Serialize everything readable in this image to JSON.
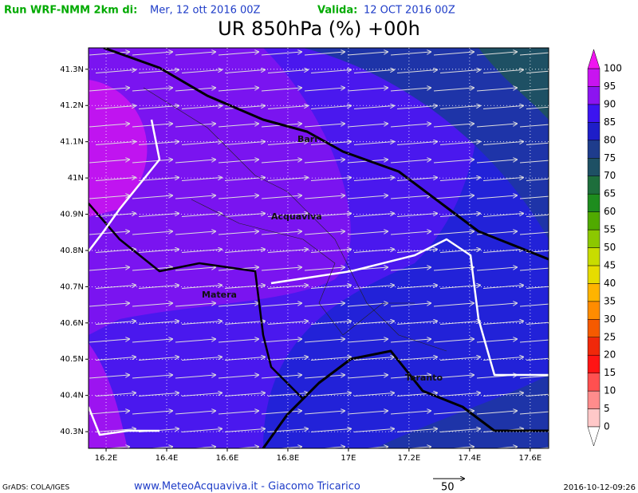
{
  "header": {
    "run_label": "Run WRF-NMM 2km di:",
    "run_date": "Mer, 12 ott 2016 00Z",
    "valid_label": "Valida:",
    "valid_date": "12 OCT 2016 00Z"
  },
  "title": "UR 850hPa (%) +00h",
  "map": {
    "xlim": [
      16.142,
      17.661
    ],
    "ylim": [
      40.254,
      41.359
    ],
    "xticks": [
      {
        "value": 16.2,
        "label": "16.2E"
      },
      {
        "value": 16.4,
        "label": "16.4E"
      },
      {
        "value": 16.6,
        "label": "16.6E"
      },
      {
        "value": 16.8,
        "label": "16.8E"
      },
      {
        "value": 17.0,
        "label": "17E"
      },
      {
        "value": 17.2,
        "label": "17.2E"
      },
      {
        "value": 17.4,
        "label": "17.4E"
      },
      {
        "value": 17.6,
        "label": "17.6E"
      }
    ],
    "yticks": [
      {
        "value": 41.3,
        "label": "41.3N"
      },
      {
        "value": 41.2,
        "label": "41.2N"
      },
      {
        "value": 41.1,
        "label": "41.1N"
      },
      {
        "value": 41.0,
        "label": "41N"
      },
      {
        "value": 40.9,
        "label": "40.9N"
      },
      {
        "value": 40.8,
        "label": "40.8N"
      },
      {
        "value": 40.7,
        "label": "40.7N"
      },
      {
        "value": 40.6,
        "label": "40.6N"
      },
      {
        "value": 40.5,
        "label": "40.5N"
      },
      {
        "value": 40.4,
        "label": "40.4N"
      },
      {
        "value": 40.3,
        "label": "40.3N"
      }
    ],
    "cities": [
      "Bari",
      "Acquaviva",
      "Matera",
      "Taranto"
    ]
  },
  "colorbar": {
    "levels": [
      0,
      5,
      10,
      15,
      20,
      25,
      30,
      35,
      40,
      45,
      50,
      55,
      60,
      65,
      70,
      75,
      80,
      85,
      90,
      95,
      100
    ],
    "colors": [
      "#ffc8c8",
      "#ff8c8c",
      "#ff5050",
      "#ff1414",
      "#f0280a",
      "#f55a00",
      "#ff8c00",
      "#ffb400",
      "#e6dc00",
      "#c8dc00",
      "#8cc800",
      "#50aa00",
      "#1e8c1e",
      "#1e6e3c",
      "#1e5064",
      "#1e3c8c",
      "#1e1ec8",
      "#3c14f0",
      "#8c14f0",
      "#c814f0"
    ],
    "below_color": "#ffffff",
    "above_color": "#f014f0"
  },
  "footer": {
    "software": "GrADS: COLA/IGES",
    "credit": "www.MeteoAcquaviva.it - Giacomo Tricarico",
    "vector_scale": "50",
    "timestamp": "2016-10-12-09:26"
  }
}
